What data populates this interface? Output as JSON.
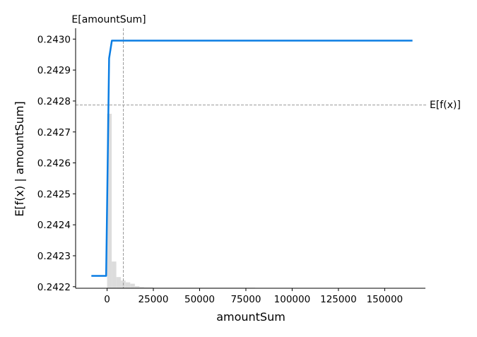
{
  "chart_data": {
    "type": "line",
    "xlabel": "amountSum",
    "ylabel": "E[f(x) | amountSum]",
    "xlim": [
      -17000,
      172000
    ],
    "ylim": [
      0.242195,
      0.243035
    ],
    "xticks": [
      0,
      25000,
      50000,
      75000,
      100000,
      125000,
      150000
    ],
    "yticks": [
      0.2422,
      0.2423,
      0.2424,
      0.2425,
      0.2426,
      0.2427,
      0.2428,
      0.2429,
      0.243
    ],
    "xtick_labels": [
      "0",
      "25000",
      "50000",
      "75000",
      "100000",
      "125000",
      "150000"
    ],
    "ytick_labels": [
      "0.2422",
      "0.2423",
      "0.2424",
      "0.2425",
      "0.2426",
      "0.2427",
      "0.2428",
      "0.2429",
      "0.2430"
    ],
    "series": [
      {
        "x": [
          -8500,
          -500,
          1100,
          2600,
          165000
        ],
        "y": [
          0.242235,
          0.242235,
          0.242938,
          0.242995,
          0.242995
        ]
      }
    ],
    "expected_value": {
      "label": "E[f(x)]",
      "y": 0.242787
    },
    "expected_feature": {
      "label": "E[amountSum]",
      "x": 8800
    },
    "histogram": {
      "bin_edges": [
        0,
        2500,
        5000,
        7500,
        10000,
        12500,
        15000,
        17500,
        20000,
        25000,
        30000,
        40000,
        50000,
        65000,
        80000
      ],
      "relative_heights": [
        1.0,
        0.153,
        0.064,
        0.044,
        0.034,
        0.026,
        0.012,
        0.008,
        0.006,
        0.003,
        0.002,
        0.002,
        0.001,
        0.001
      ]
    },
    "colors": {
      "line": "#0a7de3",
      "hist": "#dcdcdc",
      "reference": "#999999",
      "axis": "#000000"
    }
  }
}
